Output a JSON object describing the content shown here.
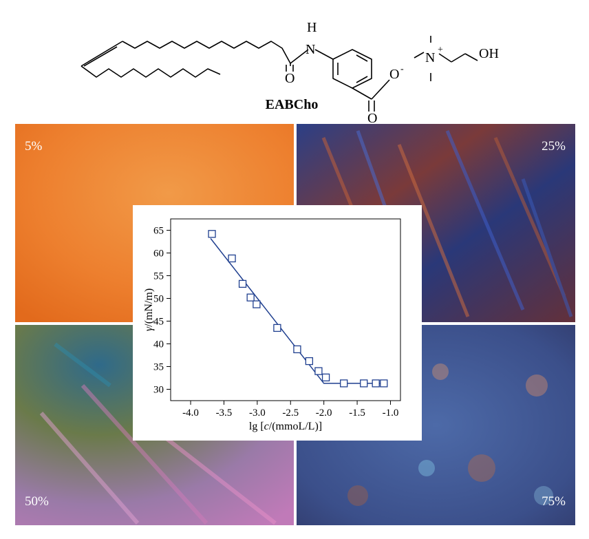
{
  "molecule": {
    "name": "EABCho",
    "labels": {
      "h": "H",
      "n": "N",
      "o_amide": "O",
      "o_minus": "O",
      "minus": "-",
      "o_acid": "O",
      "n_plus": "N",
      "plus": "+",
      "oh": "OH"
    }
  },
  "panels": {
    "top_left": {
      "label": "5%",
      "color": "#ee7a2a"
    },
    "top_right": {
      "label": "25%",
      "color": "#3a3a8a"
    },
    "bottom_left": {
      "label": "50%",
      "color": "#8a6a9a"
    },
    "bottom_right": {
      "label": "75%",
      "color": "#4a5f9a"
    }
  },
  "colors": {
    "series": "#1f3f8f"
  },
  "chart_data": {
    "type": "scatter",
    "xlabel_prefix": "lg [",
    "xlabel_var": "c",
    "xlabel_suffix": "/(mmoL/L)]",
    "ylabel_var": "γ",
    "ylabel_suffix": "/(mN/m)",
    "xlim": [
      -4.3,
      -0.85
    ],
    "ylim": [
      27.5,
      67.5
    ],
    "xticks": [
      -4.0,
      -3.5,
      -3.0,
      -2.5,
      -2.0,
      -1.5,
      -1.0
    ],
    "xtick_labels": [
      "-4.0",
      "-3.5",
      "-3.0",
      "-2.5",
      "-2.0",
      "-1.5",
      "-1.0"
    ],
    "yticks": [
      30,
      35,
      40,
      45,
      50,
      55,
      60,
      65
    ],
    "ytick_labels": [
      "30",
      "35",
      "40",
      "45",
      "50",
      "55",
      "60",
      "65"
    ],
    "points": [
      {
        "x": -3.68,
        "y": 64.2
      },
      {
        "x": -3.38,
        "y": 58.8
      },
      {
        "x": -3.22,
        "y": 53.2
      },
      {
        "x": -3.1,
        "y": 50.2
      },
      {
        "x": -3.01,
        "y": 48.7
      },
      {
        "x": -2.7,
        "y": 43.5
      },
      {
        "x": -2.4,
        "y": 38.8
      },
      {
        "x": -2.22,
        "y": 36.2
      },
      {
        "x": -2.08,
        "y": 34.0
      },
      {
        "x": -1.97,
        "y": 32.6
      },
      {
        "x": -1.7,
        "y": 31.3
      },
      {
        "x": -1.4,
        "y": 31.3
      },
      {
        "x": -1.22,
        "y": 31.3
      },
      {
        "x": -1.1,
        "y": 31.3
      }
    ],
    "fit_line": [
      {
        "x": -3.7,
        "y": 63.2
      },
      {
        "x": -2.0,
        "y": 31.3
      },
      {
        "x": -1.05,
        "y": 31.3
      }
    ],
    "grid": false,
    "legend": "none"
  }
}
